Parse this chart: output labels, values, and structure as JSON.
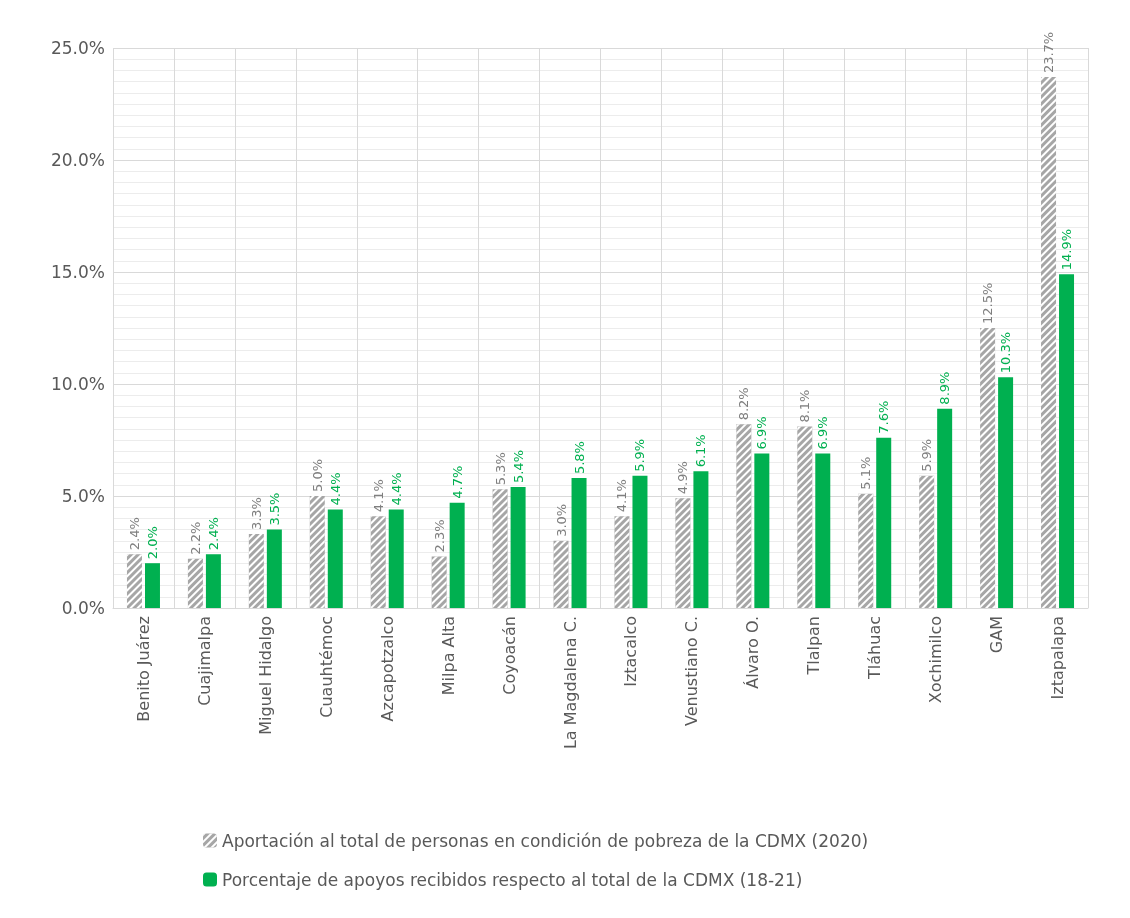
{
  "chart_data": {
    "type": "bar",
    "categories": [
      "Benito Juárez",
      "Cuajimalpa",
      "Miguel Hidalgo",
      "Cuauhtémoc",
      "Azcapotzalco",
      "Milpa Alta",
      "Coyoacán",
      "La Magdalena C.",
      "Iztacalco",
      "Venustiano C.",
      "Álvaro O.",
      "Tlalpan",
      "Tláhuac",
      "Xochimilco",
      "GAM",
      "Iztapalapa"
    ],
    "series": [
      {
        "name": "Aportación al total de personas en condición de pobreza de la CDMX (2020)",
        "color": "#a6a6a6",
        "values": [
          2.4,
          2.2,
          3.3,
          5.0,
          4.1,
          2.3,
          5.3,
          3.0,
          4.1,
          4.9,
          8.2,
          8.1,
          5.1,
          5.9,
          12.5,
          23.7
        ],
        "value_labels": [
          "2.4%",
          "2.2%",
          "3.3%",
          "5.0%",
          "4.1%",
          "2.3%",
          "5.3%",
          "3.0%",
          "4.1%",
          "4.9%",
          "8.2%",
          "8.1%",
          "5.1%",
          "5.9%",
          "12.5%",
          "23.7%"
        ]
      },
      {
        "name": "Porcentaje de apoyos recibidos respecto al total de la CDMX (18-21)",
        "color": "#00b050",
        "values": [
          2.0,
          2.4,
          3.5,
          4.4,
          4.4,
          4.7,
          5.4,
          5.8,
          5.9,
          6.1,
          6.9,
          6.9,
          7.6,
          8.9,
          10.3,
          14.9
        ],
        "value_labels": [
          "2.0%",
          "2.4%",
          "3.5%",
          "4.4%",
          "4.4%",
          "4.7%",
          "5.4%",
          "5.8%",
          "5.9%",
          "6.1%",
          "6.9%",
          "6.9%",
          "7.6%",
          "8.9%",
          "10.3%",
          "14.9%"
        ]
      }
    ],
    "ylim": [
      0,
      25
    ],
    "yticks": [
      {
        "value": 0,
        "label": "0.0%"
      },
      {
        "value": 5,
        "label": "5.0%"
      },
      {
        "value": 10,
        "label": "10.0%"
      },
      {
        "value": 15,
        "label": "15.0%"
      },
      {
        "value": 20,
        "label": "20.0%"
      },
      {
        "value": 25,
        "label": "25.0%"
      }
    ],
    "grid": true,
    "legend": "bottom"
  }
}
